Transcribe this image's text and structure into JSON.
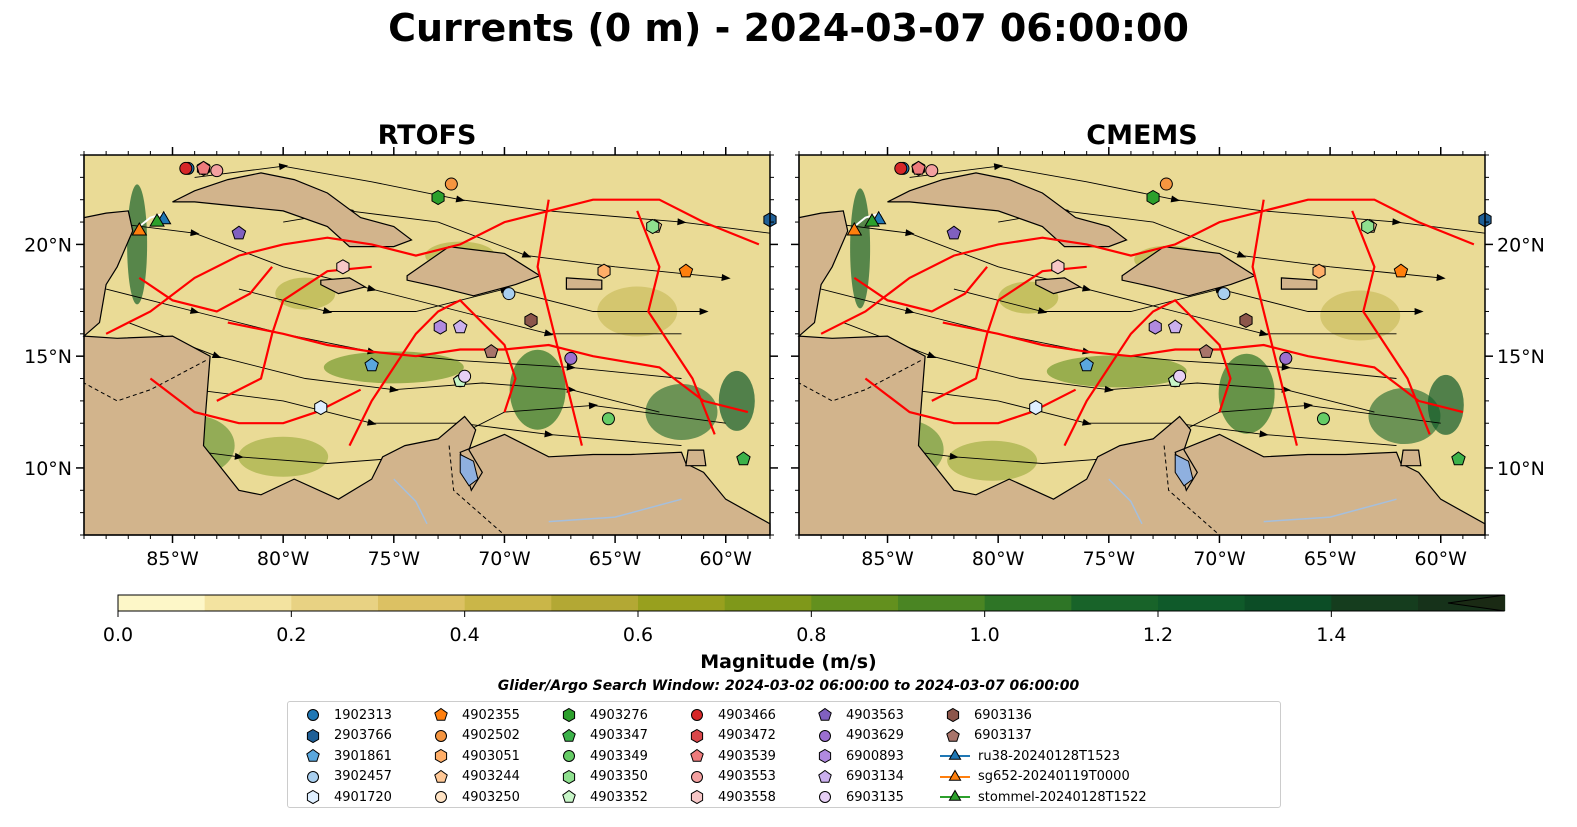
{
  "title": "Currents (0 m) - 2024-03-07 06:00:00",
  "panels": [
    {
      "title": "RTOFS"
    },
    {
      "title": "CMEMS"
    }
  ],
  "chart_data": {
    "type": "heatmap",
    "description_panels": [
      "RTOFS",
      "CMEMS"
    ],
    "xlim": [
      -89,
      -58
    ],
    "ylim": [
      7,
      24
    ],
    "x_ticks": [
      "85°W",
      "80°W",
      "75°W",
      "70°W",
      "65°W",
      "60°W"
    ],
    "x_tick_values": [
      -85,
      -80,
      -75,
      -70,
      -65,
      -60
    ],
    "y_ticks": [
      "20°N",
      "15°N",
      "10°N"
    ],
    "y_tick_values": [
      20,
      15,
      10
    ],
    "colorbar": {
      "label": "Magnitude (m/s)",
      "min": 0.0,
      "max": 1.5,
      "extend": "max",
      "ticks": [
        "0.0",
        "0.2",
        "0.4",
        "0.6",
        "0.8",
        "1.0",
        "1.2",
        "1.4"
      ],
      "colors": [
        "#fdf7c8",
        "#f3e3a0",
        "#e8d283",
        "#dcc163",
        "#cab648",
        "#b3a834",
        "#98a01e",
        "#7f981a",
        "#63901e",
        "#4a8523",
        "#2e7526",
        "#186329",
        "#0f5a2a",
        "#0c4d26",
        "#153d1e",
        "#16321a",
        "#1a2a14"
      ]
    },
    "search_window": "Glider/Argo Search Window: 2024-03-02 06:00:00 to 2024-03-07 06:00:00",
    "platforms": [
      {
        "id": "1902313",
        "marker": "circle",
        "color": "#1f77b4",
        "lon": -84.3,
        "lat": 23.4
      },
      {
        "id": "2903766",
        "marker": "hexagon",
        "color": "#1f5f96",
        "lon": -58.0,
        "lat": 21.1
      },
      {
        "id": "3901861",
        "marker": "pentagon",
        "color": "#5aa7de",
        "lon": -76.0,
        "lat": 14.6
      },
      {
        "id": "3902457",
        "marker": "circle",
        "color": "#a9cfef",
        "lon": -69.8,
        "lat": 17.8
      },
      {
        "id": "4901720",
        "marker": "hexagon",
        "color": "#dfefff",
        "lon": -78.3,
        "lat": 12.7
      },
      {
        "id": "4902355",
        "marker": "pentagon",
        "color": "#ff7f0e",
        "lon": -61.8,
        "lat": 18.8
      },
      {
        "id": "4902502",
        "marker": "circle",
        "color": "#f59540",
        "lon": -72.4,
        "lat": 22.7
      },
      {
        "id": "4903051",
        "marker": "hexagon",
        "color": "#ffae68",
        "lon": -65.5,
        "lat": 18.8
      },
      {
        "id": "4903244",
        "marker": "pentagon",
        "color": "#ffc896",
        "lon": -63.2,
        "lat": 20.8
      },
      {
        "id": "4903250",
        "marker": "circle",
        "color": "#ffe3c4",
        "lon": -72.0,
        "lat": 13.9
      },
      {
        "id": "4903276",
        "marker": "hexagon",
        "color": "#2ca02c",
        "lon": -73.0,
        "lat": 22.1
      },
      {
        "id": "4903347",
        "marker": "pentagon",
        "color": "#3cb24a",
        "lon": -59.2,
        "lat": 10.4
      },
      {
        "id": "4903349",
        "marker": "circle",
        "color": "#66cc66",
        "lon": -65.3,
        "lat": 12.2
      },
      {
        "id": "4903350",
        "marker": "hexagon",
        "color": "#8fe08f",
        "lon": -63.3,
        "lat": 20.8
      },
      {
        "id": "4903352",
        "marker": "pentagon",
        "color": "#c7f5c7",
        "lon": -72.0,
        "lat": 13.9
      },
      {
        "id": "4903466",
        "marker": "circle",
        "color": "#d62728",
        "lon": -84.4,
        "lat": 23.4
      },
      {
        "id": "4903472",
        "marker": "hexagon",
        "color": "#d9474a",
        "lon": -83.6,
        "lat": 23.4
      },
      {
        "id": "4903539",
        "marker": "pentagon",
        "color": "#ee7b7c",
        "lon": -83.6,
        "lat": 23.4
      },
      {
        "id": "4903553",
        "marker": "circle",
        "color": "#f3a0a0",
        "lon": -83.0,
        "lat": 23.3
      },
      {
        "id": "4903558",
        "marker": "hexagon",
        "color": "#f7c7c7",
        "lon": -77.3,
        "lat": 19.0
      },
      {
        "id": "4903563",
        "marker": "pentagon",
        "color": "#8060c0",
        "lon": -82.0,
        "lat": 20.5
      },
      {
        "id": "4903629",
        "marker": "circle",
        "color": "#9b6fd0",
        "lon": -67.0,
        "lat": 14.9
      },
      {
        "id": "6900893",
        "marker": "hexagon",
        "color": "#b08ae0",
        "lon": -72.9,
        "lat": 16.3
      },
      {
        "id": "6903134",
        "marker": "pentagon",
        "color": "#cbb0ee",
        "lon": -72.0,
        "lat": 16.3
      },
      {
        "id": "6903135",
        "marker": "circle",
        "color": "#e6cff5",
        "lon": -71.8,
        "lat": 14.1
      },
      {
        "id": "6903136",
        "marker": "hexagon",
        "color": "#8c564b",
        "lon": -68.8,
        "lat": 16.6
      },
      {
        "id": "6903137",
        "marker": "pentagon",
        "color": "#a8746a",
        "lon": -70.6,
        "lat": 15.2
      }
    ],
    "gliders": [
      {
        "id": "ru38-20240128T1523",
        "marker": "triangle",
        "color": "#1f77b4",
        "lon": -85.4,
        "lat": 21.1
      },
      {
        "id": "sg652-20240119T0000",
        "marker": "triangle",
        "color": "#ff7f0e",
        "lon": -86.5,
        "lat": 20.6
      },
      {
        "id": "stommel-20240128T1522",
        "marker": "triangle",
        "color": "#2ca02c",
        "lon": -85.7,
        "lat": 21.0
      }
    ]
  },
  "colors": {
    "land": "#d2b48c",
    "eez_lines": "#ff0000",
    "rivers": "#a5bfdd",
    "ocean_low": "#fdf7c8"
  }
}
